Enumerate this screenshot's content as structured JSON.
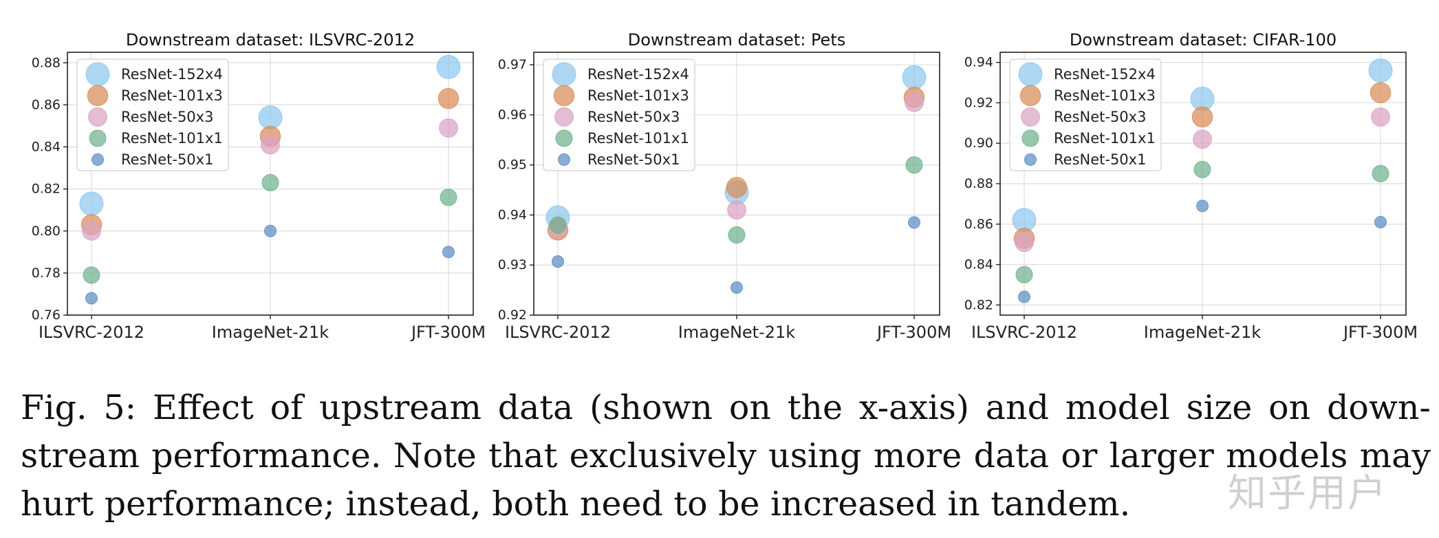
{
  "chart_data": [
    {
      "type": "scatter",
      "title": "Downstream dataset: ILSVRC-2012",
      "categories": [
        "ILSVRC-2012",
        "ImageNet-21k",
        "JFT-300M"
      ],
      "ylim": [
        0.76,
        0.885
      ],
      "yticks": [
        "0.76",
        "0.78",
        "0.80",
        "0.82",
        "0.84",
        "0.86",
        "0.88"
      ],
      "grid": true,
      "legend": "top-left",
      "series": [
        {
          "name": "ResNet-152x4",
          "values": [
            0.813,
            0.854,
            0.878
          ]
        },
        {
          "name": "ResNet-101x3",
          "values": [
            0.803,
            0.845,
            0.863
          ]
        },
        {
          "name": "ResNet-50x3",
          "values": [
            0.8,
            0.841,
            0.849
          ]
        },
        {
          "name": "ResNet-101x1",
          "values": [
            0.779,
            0.823,
            0.816
          ]
        },
        {
          "name": "ResNet-50x1",
          "values": [
            0.768,
            0.8,
            0.79
          ]
        }
      ]
    },
    {
      "type": "scatter",
      "title": "Downstream dataset: Pets",
      "categories": [
        "ILSVRC-2012",
        "ImageNet-21k",
        "JFT-300M"
      ],
      "ylim": [
        0.92,
        0.9725
      ],
      "yticks": [
        "0.92",
        "0.93",
        "0.94",
        "0.95",
        "0.96",
        "0.97"
      ],
      "grid": true,
      "legend": "top-left",
      "series": [
        {
          "name": "ResNet-152x4",
          "values": [
            0.9395,
            0.9445,
            0.9675
          ]
        },
        {
          "name": "ResNet-101x3",
          "values": [
            0.937,
            0.9455,
            0.9635
          ]
        },
        {
          "name": "ResNet-50x3",
          "values": [
            0.9375,
            0.941,
            0.9625
          ]
        },
        {
          "name": "ResNet-101x1",
          "values": [
            0.938,
            0.936,
            0.95
          ]
        },
        {
          "name": "ResNet-50x1",
          "values": [
            0.9307,
            0.9255,
            0.9385
          ]
        }
      ]
    },
    {
      "type": "scatter",
      "title": "Downstream dataset: CIFAR-100",
      "categories": [
        "ILSVRC-2012",
        "ImageNet-21k",
        "JFT-300M"
      ],
      "ylim": [
        0.815,
        0.945
      ],
      "yticks": [
        "0.82",
        "0.84",
        "0.86",
        "0.88",
        "0.90",
        "0.92",
        "0.94"
      ],
      "grid": true,
      "legend": "top-left",
      "series": [
        {
          "name": "ResNet-152x4",
          "values": [
            0.862,
            0.922,
            0.936
          ]
        },
        {
          "name": "ResNet-101x3",
          "values": [
            0.853,
            0.913,
            0.925
          ]
        },
        {
          "name": "ResNet-50x3",
          "values": [
            0.851,
            0.902,
            0.913
          ]
        },
        {
          "name": "ResNet-101x1",
          "values": [
            0.835,
            0.887,
            0.885
          ]
        },
        {
          "name": "ResNet-50x1",
          "values": [
            0.824,
            0.869,
            0.861
          ]
        }
      ]
    }
  ],
  "series_style": [
    {
      "name": "ResNet-152x4",
      "color": "#8ec7ef",
      "size": 4
    },
    {
      "name": "ResNet-101x3",
      "color": "#d98c57",
      "size": 3
    },
    {
      "name": "ResNet-50x3",
      "color": "#d9a3c4",
      "size": 2.5
    },
    {
      "name": "ResNet-101x1",
      "color": "#6fb28d",
      "size": 2
    },
    {
      "name": "ResNet-50x1",
      "color": "#5d8ec4",
      "size": 1
    }
  ],
  "caption": {
    "line1": "Fig. 5: Effect of upstream data (shown on the x-axis) and model size on down-",
    "line2": "stream performance. Note that exclusively using more data or larger models may",
    "line3": "hurt performance; instead, both need to be increased in tandem."
  },
  "watermark": "知乎用户"
}
